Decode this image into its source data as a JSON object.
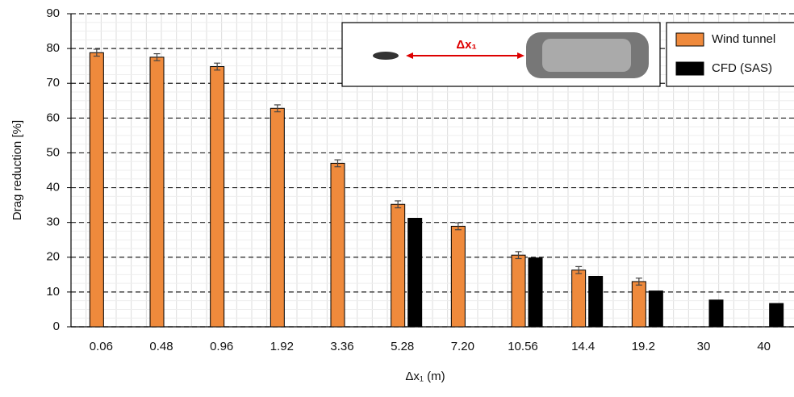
{
  "chart_data": {
    "type": "bar",
    "x_label": "Δx₁ (m)",
    "y_label": "Drag reduction [%]",
    "categories": [
      "0.06",
      "0.48",
      "0.96",
      "1.92",
      "3.36",
      "5.28",
      "7.20",
      "10.56",
      "14.4",
      "19.2",
      "30",
      "40"
    ],
    "series": [
      {
        "name": "Wind tunnel",
        "color": "#ef8a3c",
        "values": [
          78.8,
          77.5,
          74.8,
          62.8,
          47,
          35.2,
          28.9,
          20.6,
          16.3,
          13,
          null,
          null
        ],
        "errors": [
          1,
          1,
          1,
          1,
          1,
          1,
          1,
          1,
          1,
          1,
          null,
          null
        ]
      },
      {
        "name": "CFD (SAS)",
        "color": "#000000",
        "values": [
          null,
          null,
          null,
          null,
          null,
          31.2,
          null,
          19.8,
          14.5,
          10.3,
          7.7,
          6.7
        ]
      }
    ],
    "ylim": [
      0,
      90
    ],
    "yticks": [
      0,
      10,
      20,
      30,
      40,
      50,
      60,
      70,
      80,
      90
    ],
    "grid": true,
    "legend": "top-right",
    "annotation": "Δx₁"
  }
}
